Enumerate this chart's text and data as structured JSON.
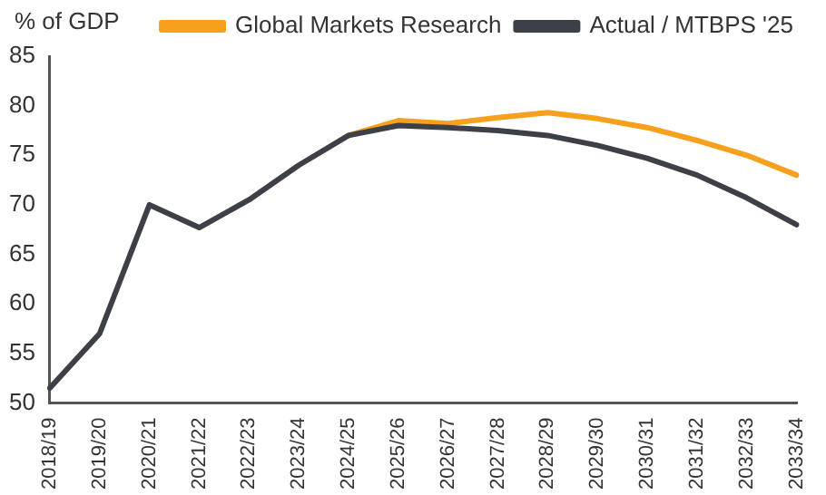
{
  "chart_data": {
    "type": "line",
    "ylabel": "% of GDP",
    "categories": [
      "2018/19",
      "2019/20",
      "2020/21",
      "2021/22",
      "2022/23",
      "2023/24",
      "2024/25",
      "2025/26",
      "2026/27",
      "2027/28",
      "2028/29",
      "2029/30",
      "2030/31",
      "2031/32",
      "2032/33",
      "2033/34"
    ],
    "series": [
      {
        "name": "Global Markets Research",
        "color": "#f7a01d",
        "values": [
          null,
          null,
          null,
          null,
          null,
          null,
          77,
          78.5,
          78.2,
          78.8,
          79.3,
          78.7,
          77.8,
          76.5,
          75,
          73
        ]
      },
      {
        "name": "Actual / MTBPS '25",
        "color": "#3d4046",
        "values": [
          51.5,
          57,
          70,
          67.7,
          70.5,
          74,
          77,
          78,
          77.8,
          77.5,
          77,
          76,
          74.7,
          73,
          70.7,
          68
        ]
      }
    ],
    "ylim": [
      50,
      85
    ],
    "yticks": [
      50,
      55,
      60,
      65,
      70,
      75,
      80,
      85
    ],
    "grid": false,
    "legend": "top",
    "marker": "none",
    "line_style": "solid"
  }
}
